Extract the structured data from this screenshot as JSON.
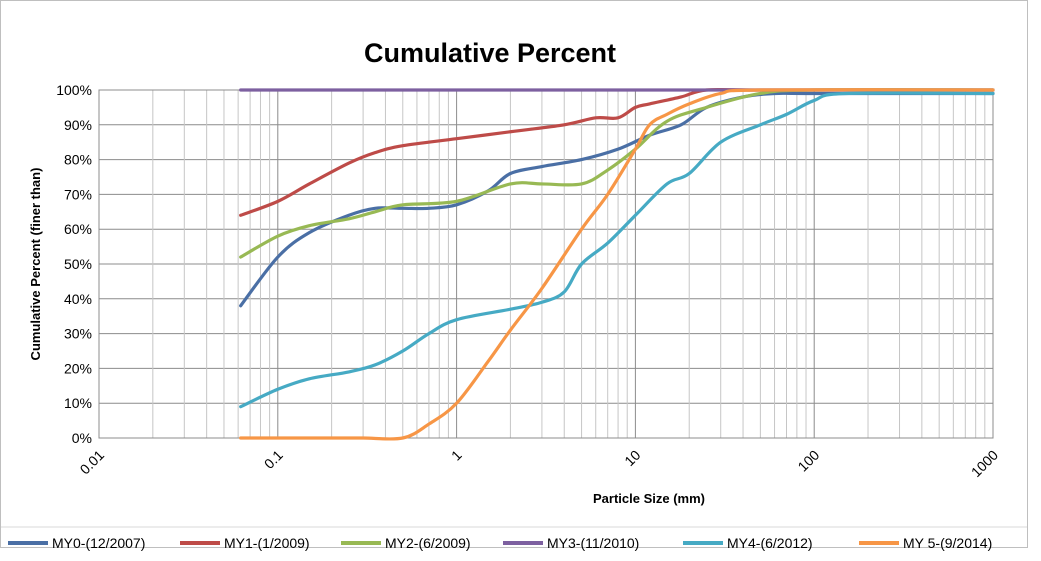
{
  "chart_data": {
    "type": "line",
    "title": "Cumulative Percent",
    "xlabel": "Particle Size (mm)",
    "ylabel": "Cumulative Percent (finer than)",
    "x_scale": "log",
    "xlim": [
      0.01,
      1000
    ],
    "ylim": [
      0,
      1
    ],
    "x_ticks": [
      "0.01",
      "0.1",
      "1",
      "10",
      "100",
      "1000"
    ],
    "y_ticks": [
      "0%",
      "10%",
      "20%",
      "30%",
      "40%",
      "50%",
      "60%",
      "70%",
      "80%",
      "90%",
      "100%"
    ],
    "grid": "on",
    "legend_position": "bottom",
    "series": [
      {
        "name": "MY0-(12/2007)",
        "color": "#4a6fa5",
        "points": [
          [
            0.062,
            0.38
          ],
          [
            0.1,
            0.52
          ],
          [
            0.15,
            0.59
          ],
          [
            0.25,
            0.64
          ],
          [
            0.35,
            0.66
          ],
          [
            0.5,
            0.66
          ],
          [
            0.7,
            0.66
          ],
          [
            1,
            0.67
          ],
          [
            1.5,
            0.71
          ],
          [
            2,
            0.76
          ],
          [
            3,
            0.78
          ],
          [
            5,
            0.8
          ],
          [
            8,
            0.83
          ],
          [
            12,
            0.87
          ],
          [
            18,
            0.9
          ],
          [
            25,
            0.95
          ],
          [
            40,
            0.98
          ],
          [
            60,
            0.99
          ],
          [
            100,
            0.99
          ],
          [
            1000,
            0.99
          ]
        ]
      },
      {
        "name": "MY1-(1/2009)",
        "color": "#be4b48",
        "points": [
          [
            0.062,
            0.64
          ],
          [
            0.1,
            0.68
          ],
          [
            0.15,
            0.73
          ],
          [
            0.25,
            0.79
          ],
          [
            0.35,
            0.82
          ],
          [
            0.5,
            0.84
          ],
          [
            1,
            0.86
          ],
          [
            2,
            0.88
          ],
          [
            4,
            0.9
          ],
          [
            6,
            0.92
          ],
          [
            8,
            0.92
          ],
          [
            10,
            0.95
          ],
          [
            12,
            0.96
          ],
          [
            18,
            0.98
          ],
          [
            25,
            1.0
          ],
          [
            50,
            1.0
          ],
          [
            1000,
            1.0
          ]
        ]
      },
      {
        "name": "MY2-(6/2009)",
        "color": "#98b954",
        "points": [
          [
            0.062,
            0.52
          ],
          [
            0.1,
            0.58
          ],
          [
            0.15,
            0.61
          ],
          [
            0.25,
            0.63
          ],
          [
            0.35,
            0.65
          ],
          [
            0.5,
            0.67
          ],
          [
            1,
            0.68
          ],
          [
            2,
            0.73
          ],
          [
            3,
            0.73
          ],
          [
            5,
            0.73
          ],
          [
            7,
            0.77
          ],
          [
            10,
            0.83
          ],
          [
            15,
            0.91
          ],
          [
            25,
            0.95
          ],
          [
            50,
            0.99
          ],
          [
            100,
            1.0
          ],
          [
            1000,
            1.0
          ]
        ]
      },
      {
        "name": "MY3-(11/2010)",
        "color": "#7d60a0",
        "points": [
          [
            0.062,
            1.0
          ],
          [
            0.1,
            1.0
          ],
          [
            1,
            1.0
          ],
          [
            10,
            1.0
          ],
          [
            100,
            1.0
          ],
          [
            1000,
            1.0
          ]
        ]
      },
      {
        "name": "MY4-(6/2012)",
        "color": "#46aac4",
        "points": [
          [
            0.062,
            0.09
          ],
          [
            0.1,
            0.14
          ],
          [
            0.15,
            0.17
          ],
          [
            0.25,
            0.19
          ],
          [
            0.35,
            0.21
          ],
          [
            0.5,
            0.25
          ],
          [
            0.7,
            0.3
          ],
          [
            1,
            0.34
          ],
          [
            2,
            0.37
          ],
          [
            3,
            0.39
          ],
          [
            4,
            0.42
          ],
          [
            5,
            0.5
          ],
          [
            7,
            0.56
          ],
          [
            10,
            0.64
          ],
          [
            15,
            0.73
          ],
          [
            20,
            0.76
          ],
          [
            30,
            0.85
          ],
          [
            50,
            0.9
          ],
          [
            70,
            0.93
          ],
          [
            100,
            0.97
          ],
          [
            150,
            0.99
          ],
          [
            1000,
            0.99
          ]
        ]
      },
      {
        "name": "MY 5-(9/2014)",
        "color": "#f79646",
        "points": [
          [
            0.062,
            0.0
          ],
          [
            0.1,
            0.0
          ],
          [
            0.2,
            0.0
          ],
          [
            0.3,
            0.0
          ],
          [
            0.5,
            0.0
          ],
          [
            0.7,
            0.04
          ],
          [
            1,
            0.1
          ],
          [
            1.5,
            0.22
          ],
          [
            2,
            0.31
          ],
          [
            3,
            0.43
          ],
          [
            5,
            0.6
          ],
          [
            7,
            0.7
          ],
          [
            10,
            0.83
          ],
          [
            12,
            0.9
          ],
          [
            15,
            0.93
          ],
          [
            20,
            0.96
          ],
          [
            30,
            0.99
          ],
          [
            50,
            1.0
          ],
          [
            1000,
            1.0
          ]
        ]
      }
    ]
  }
}
